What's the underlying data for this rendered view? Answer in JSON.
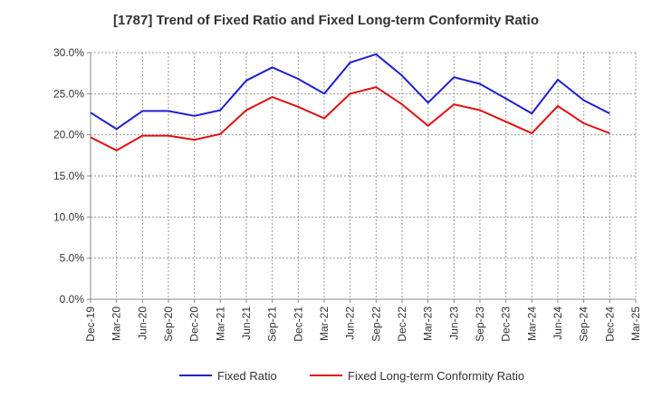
{
  "chart_data": {
    "type": "line",
    "title": "[1787]  Trend of Fixed Ratio and Fixed Long-term Conformity Ratio",
    "xlabel": "",
    "ylabel": "",
    "ylim": [
      0,
      30
    ],
    "yticks": [
      "0.0%",
      "5.0%",
      "10.0%",
      "15.0%",
      "20.0%",
      "25.0%",
      "30.0%"
    ],
    "x_tick_labels": [
      "Dec-19",
      "Mar-20",
      "Jun-20",
      "Sep-20",
      "Dec-20",
      "Mar-21",
      "Jun-21",
      "Sep-21",
      "Dec-21",
      "Mar-22",
      "Jun-22",
      "Sep-22",
      "Dec-22",
      "Mar-23",
      "Jun-23",
      "Sep-23",
      "Dec-23",
      "Mar-24",
      "Jun-24",
      "Sep-24",
      "Dec-24",
      "Mar-25"
    ],
    "x": [
      "Dec-19",
      "Mar-20",
      "Jun-20",
      "Sep-20",
      "Dec-20",
      "Mar-21",
      "Jun-21",
      "Sep-21",
      "Dec-21",
      "Mar-22",
      "Jun-22",
      "Sep-22",
      "Dec-22",
      "Mar-23",
      "Jun-23",
      "Sep-23",
      "Dec-23",
      "Mar-24",
      "Jun-24",
      "Sep-24",
      "Dec-24"
    ],
    "grid": true,
    "legend_position": "bottom",
    "series": [
      {
        "name": "Fixed Ratio",
        "color": "#1f1fd0",
        "values": [
          22.7,
          20.7,
          22.9,
          22.9,
          22.3,
          23.0,
          26.6,
          28.2,
          26.8,
          25.0,
          28.8,
          29.8,
          27.2,
          23.9,
          27.0,
          26.2,
          24.4,
          22.6,
          26.7,
          24.2,
          22.6
        ]
      },
      {
        "name": "Fixed Long-term Conformity Ratio",
        "color": "#e01010",
        "values": [
          19.7,
          18.1,
          19.9,
          19.9,
          19.4,
          20.1,
          23.0,
          24.6,
          23.4,
          22.0,
          25.0,
          25.8,
          23.7,
          21.1,
          23.7,
          23.0,
          21.6,
          20.2,
          23.5,
          21.4,
          20.2
        ]
      }
    ]
  }
}
